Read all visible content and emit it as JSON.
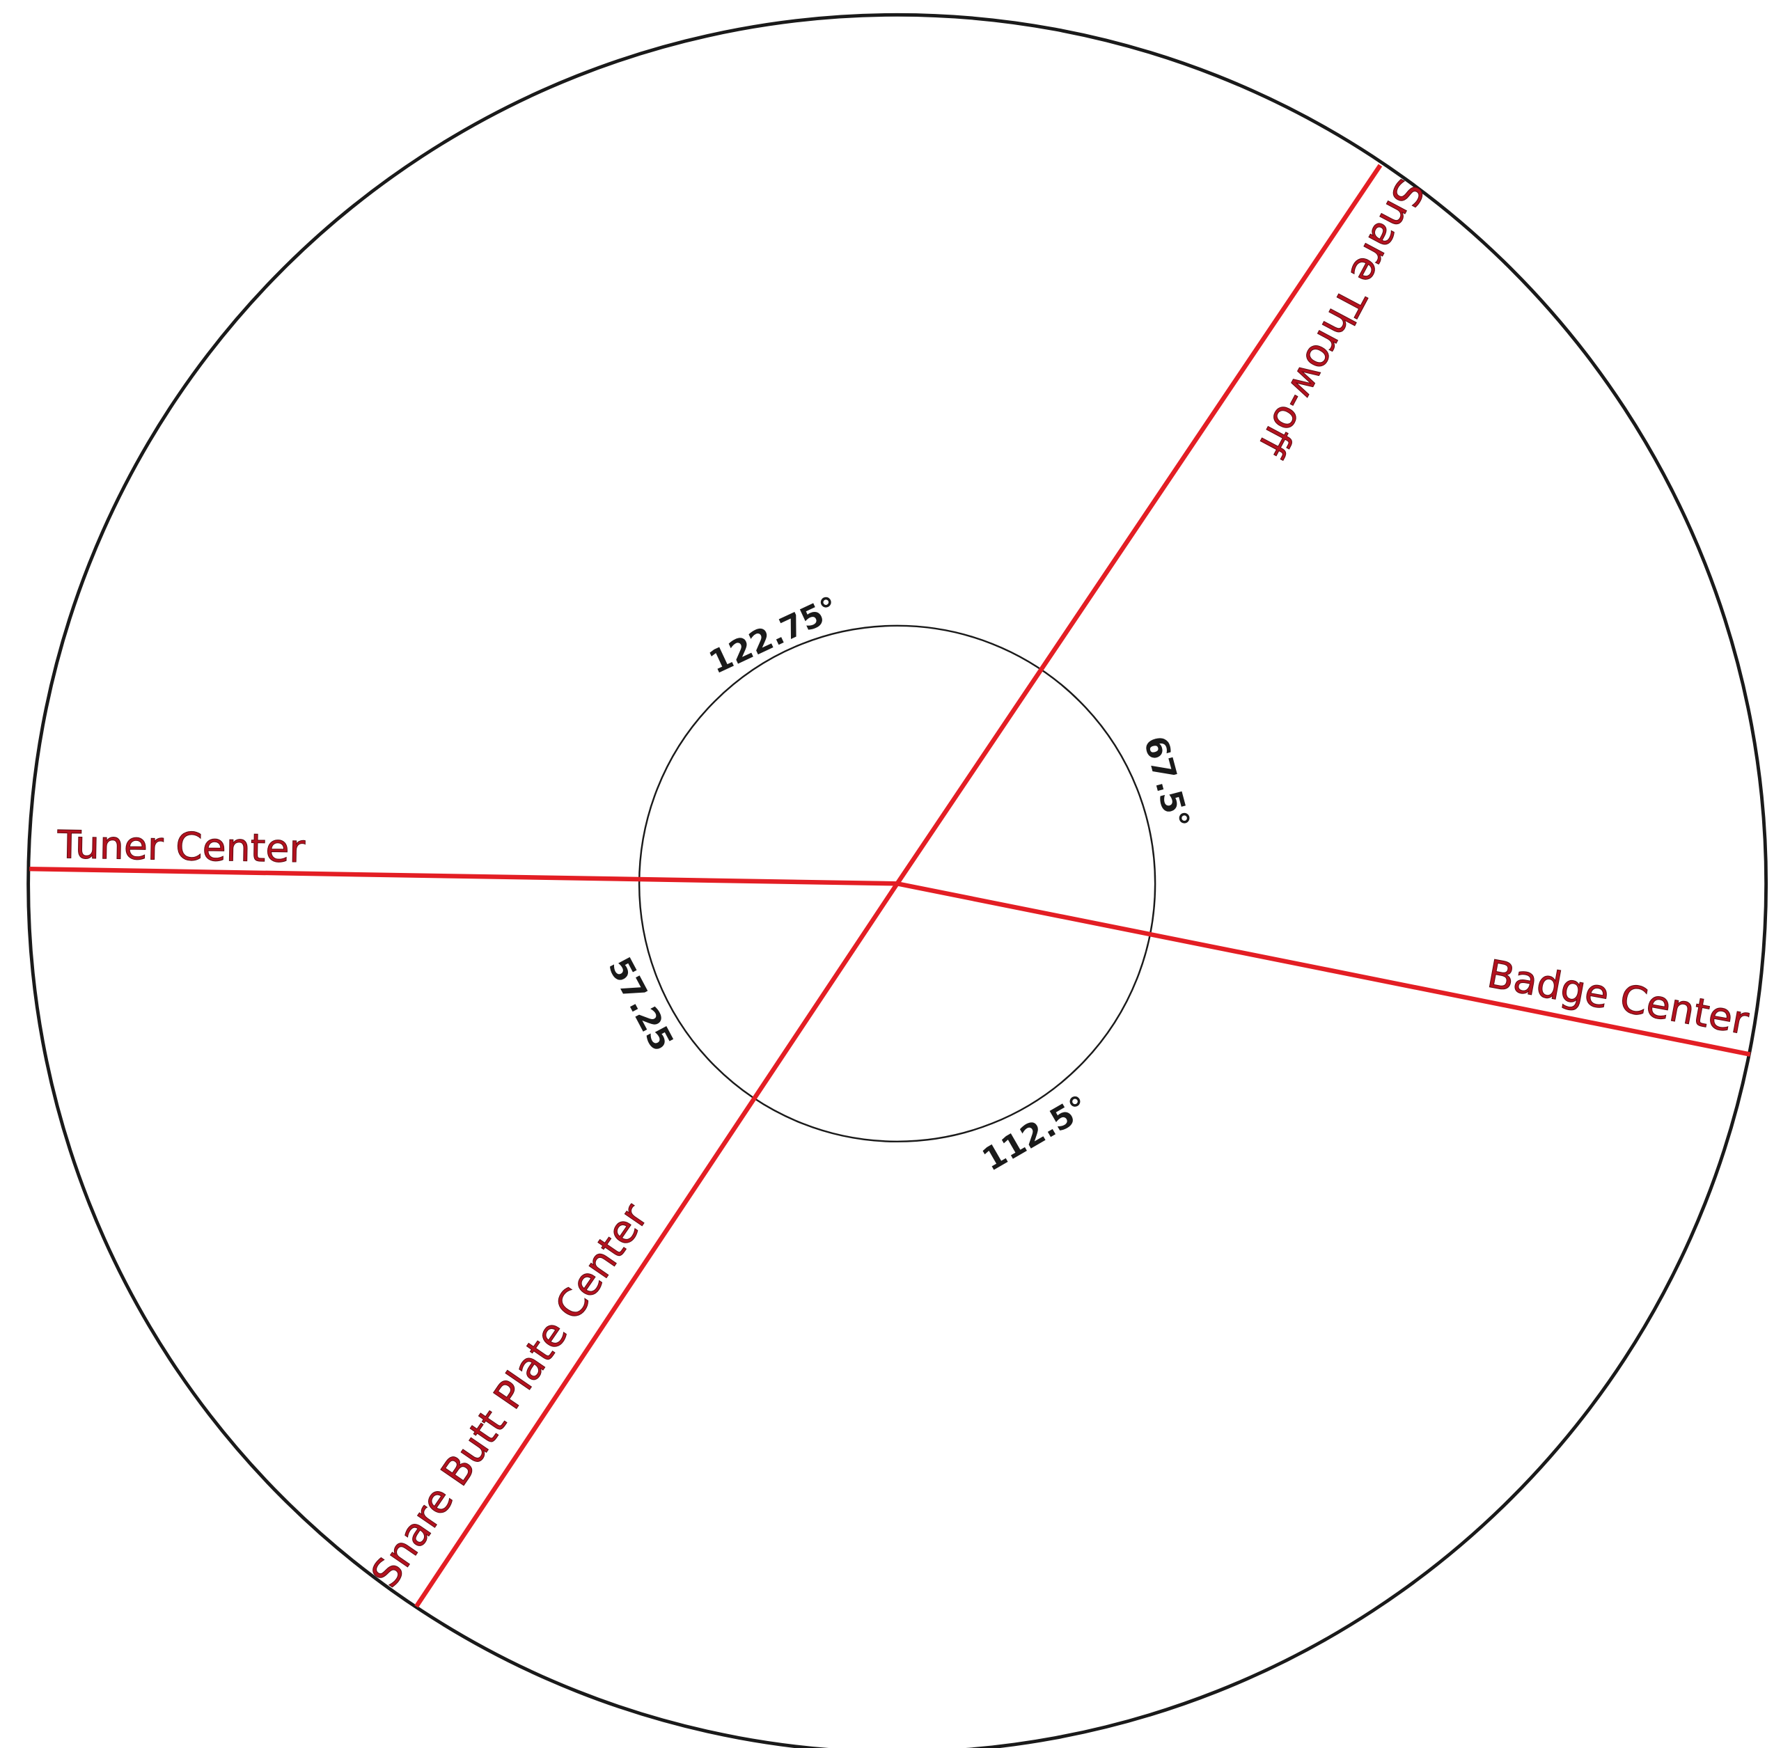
{
  "references": [
    {
      "label": "Snare Throw-off"
    },
    {
      "label": "Snare Butt Plate Center"
    },
    {
      "label": "Tuner Center"
    },
    {
      "label": "Badge Center"
    }
  ],
  "angles": [
    {
      "label": "122.75°"
    },
    {
      "label": "67.5°"
    },
    {
      "label": "57.25"
    },
    {
      "label": "112.5°"
    }
  ]
}
